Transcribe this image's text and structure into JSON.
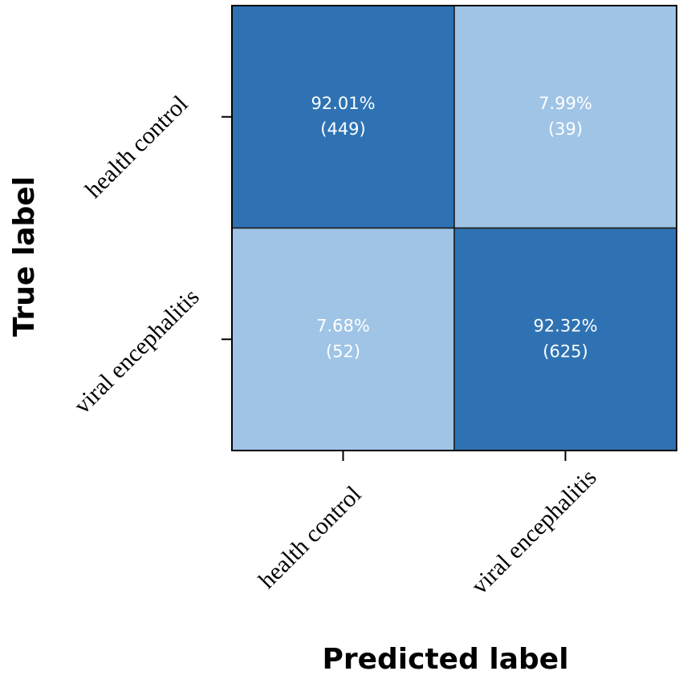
{
  "chart_data": {
    "type": "heatmap",
    "title": "",
    "xlabel": "Predicted label",
    "ylabel": "True label",
    "x_categories": [
      "health control",
      "viral encephalitis"
    ],
    "y_categories": [
      "health control",
      "viral encephalitis"
    ],
    "cells": [
      [
        {
          "percent": "92.01%",
          "count": "(449)",
          "value": 92.01
        },
        {
          "percent": "7.99%",
          "count": "(39)",
          "value": 7.99
        }
      ],
      [
        {
          "percent": "7.68%",
          "count": "(52)",
          "value": 7.68
        },
        {
          "percent": "92.32%",
          "count": "(625)",
          "value": 92.32
        }
      ]
    ],
    "colors": {
      "high": "#2e72b3",
      "low": "#9fc4e6"
    },
    "grid": false,
    "legend": "none"
  }
}
